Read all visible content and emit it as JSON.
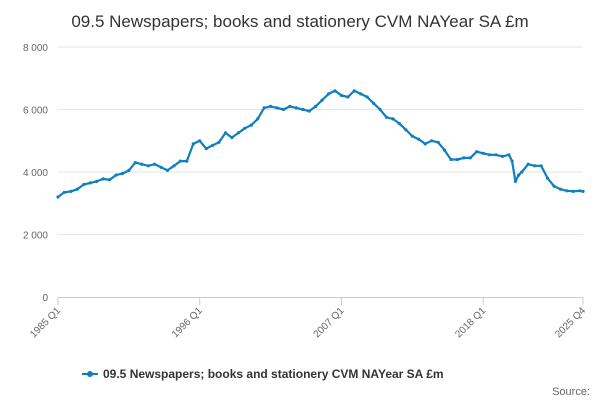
{
  "chart_data": {
    "type": "line",
    "title": "09.5 Newspapers; books and stationery CVM NAYear SA £m",
    "xlabel": "",
    "ylabel": "",
    "ylim": [
      0,
      8000
    ],
    "yticks": [
      0,
      2000,
      4000,
      6000,
      8000
    ],
    "ytick_labels": [
      "0",
      "2 000",
      "4 000",
      "6 000",
      "8 000"
    ],
    "xlim": [
      1985.0,
      2025.75
    ],
    "xticks": [
      1985.0,
      1996.0,
      2007.0,
      2018.0,
      2025.75
    ],
    "xtick_labels": [
      "1985 Q1",
      "1996 Q1",
      "2007 Q1",
      "2018 Q1",
      "2025 Q4"
    ],
    "grid": true,
    "legend_position": "bottom",
    "series": [
      {
        "name": "09.5 Newspapers; books and stationery CVM NAYear SA £m",
        "color": "#0f7fbf",
        "points": [
          [
            1985.0,
            3200
          ],
          [
            1985.5,
            3350
          ],
          [
            1986.0,
            3380
          ],
          [
            1986.5,
            3450
          ],
          [
            1987.0,
            3600
          ],
          [
            1987.5,
            3650
          ],
          [
            1988.0,
            3700
          ],
          [
            1988.5,
            3780
          ],
          [
            1989.0,
            3750
          ],
          [
            1989.5,
            3900
          ],
          [
            1990.0,
            3950
          ],
          [
            1990.5,
            4050
          ],
          [
            1991.0,
            4300
          ],
          [
            1991.5,
            4250
          ],
          [
            1992.0,
            4200
          ],
          [
            1992.5,
            4250
          ],
          [
            1993.0,
            4150
          ],
          [
            1993.5,
            4050
          ],
          [
            1994.0,
            4200
          ],
          [
            1994.5,
            4350
          ],
          [
            1995.0,
            4350
          ],
          [
            1995.5,
            4900
          ],
          [
            1996.0,
            5000
          ],
          [
            1996.5,
            4750
          ],
          [
            1997.0,
            4850
          ],
          [
            1997.5,
            4950
          ],
          [
            1998.0,
            5250
          ],
          [
            1998.5,
            5100
          ],
          [
            1999.0,
            5250
          ],
          [
            1999.5,
            5400
          ],
          [
            2000.0,
            5500
          ],
          [
            2000.5,
            5700
          ],
          [
            2001.0,
            6050
          ],
          [
            2001.5,
            6100
          ],
          [
            2002.0,
            6050
          ],
          [
            2002.5,
            6000
          ],
          [
            2003.0,
            6100
          ],
          [
            2003.5,
            6050
          ],
          [
            2004.0,
            6000
          ],
          [
            2004.5,
            5950
          ],
          [
            2005.0,
            6100
          ],
          [
            2005.5,
            6300
          ],
          [
            2006.0,
            6500
          ],
          [
            2006.5,
            6600
          ],
          [
            2007.0,
            6450
          ],
          [
            2007.5,
            6400
          ],
          [
            2008.0,
            6600
          ],
          [
            2008.5,
            6500
          ],
          [
            2009.0,
            6400
          ],
          [
            2009.5,
            6200
          ],
          [
            2010.0,
            6000
          ],
          [
            2010.5,
            5750
          ],
          [
            2011.0,
            5700
          ],
          [
            2011.5,
            5550
          ],
          [
            2012.0,
            5350
          ],
          [
            2012.5,
            5150
          ],
          [
            2013.0,
            5050
          ],
          [
            2013.5,
            4900
          ],
          [
            2014.0,
            5000
          ],
          [
            2014.5,
            4950
          ],
          [
            2015.0,
            4700
          ],
          [
            2015.5,
            4400
          ],
          [
            2016.0,
            4400
          ],
          [
            2016.5,
            4450
          ],
          [
            2017.0,
            4450
          ],
          [
            2017.5,
            4650
          ],
          [
            2018.0,
            4600
          ],
          [
            2018.5,
            4550
          ],
          [
            2019.0,
            4550
          ],
          [
            2019.5,
            4500
          ],
          [
            2020.0,
            4550
          ],
          [
            2020.25,
            4350
          ],
          [
            2020.5,
            3700
          ],
          [
            2020.75,
            3900
          ],
          [
            2021.0,
            4000
          ],
          [
            2021.5,
            4250
          ],
          [
            2022.0,
            4200
          ],
          [
            2022.5,
            4200
          ],
          [
            2023.0,
            3800
          ],
          [
            2023.5,
            3550
          ],
          [
            2024.0,
            3450
          ],
          [
            2024.5,
            3400
          ],
          [
            2025.0,
            3380
          ],
          [
            2025.5,
            3400
          ],
          [
            2025.75,
            3380
          ]
        ]
      }
    ]
  },
  "footer": {
    "source_label": "Source:"
  }
}
